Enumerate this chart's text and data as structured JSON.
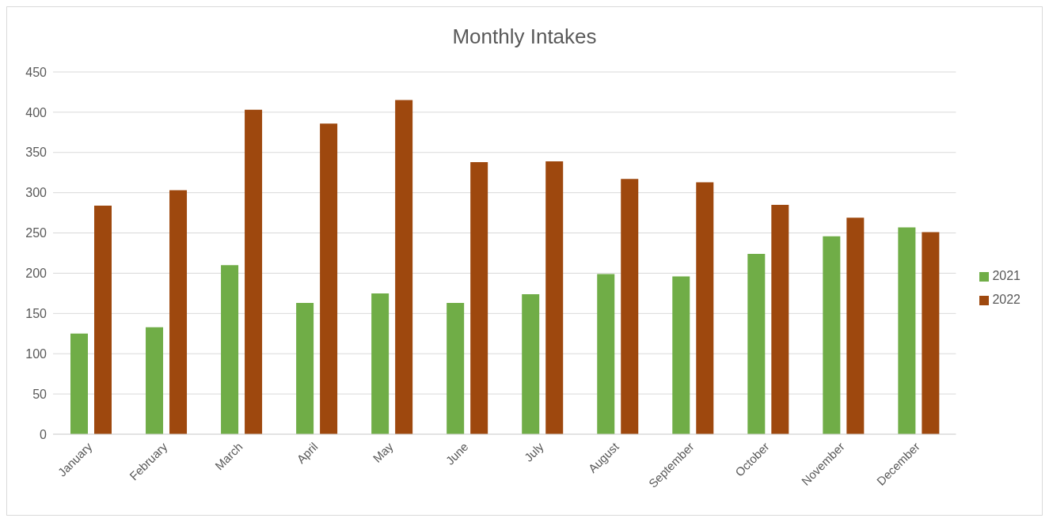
{
  "chart_data": {
    "type": "bar",
    "title": "Monthly Intakes",
    "categories": [
      "January",
      "February",
      "March",
      "April",
      "May",
      "June",
      "July",
      "August",
      "September",
      "October",
      "November",
      "December"
    ],
    "series": [
      {
        "name": "2021",
        "color": "#70ad47",
        "values": [
          125,
          133,
          210,
          163,
          175,
          163,
          174,
          199,
          196,
          224,
          246,
          257
        ]
      },
      {
        "name": "2022",
        "color": "#9e480e",
        "values": [
          284,
          303,
          403,
          386,
          415,
          338,
          339,
          317,
          313,
          285,
          269,
          251
        ]
      }
    ],
    "ylim": [
      0,
      450
    ],
    "yticks": [
      0,
      50,
      100,
      150,
      200,
      250,
      300,
      350,
      400,
      450
    ],
    "grid": "y",
    "legend": "right"
  }
}
